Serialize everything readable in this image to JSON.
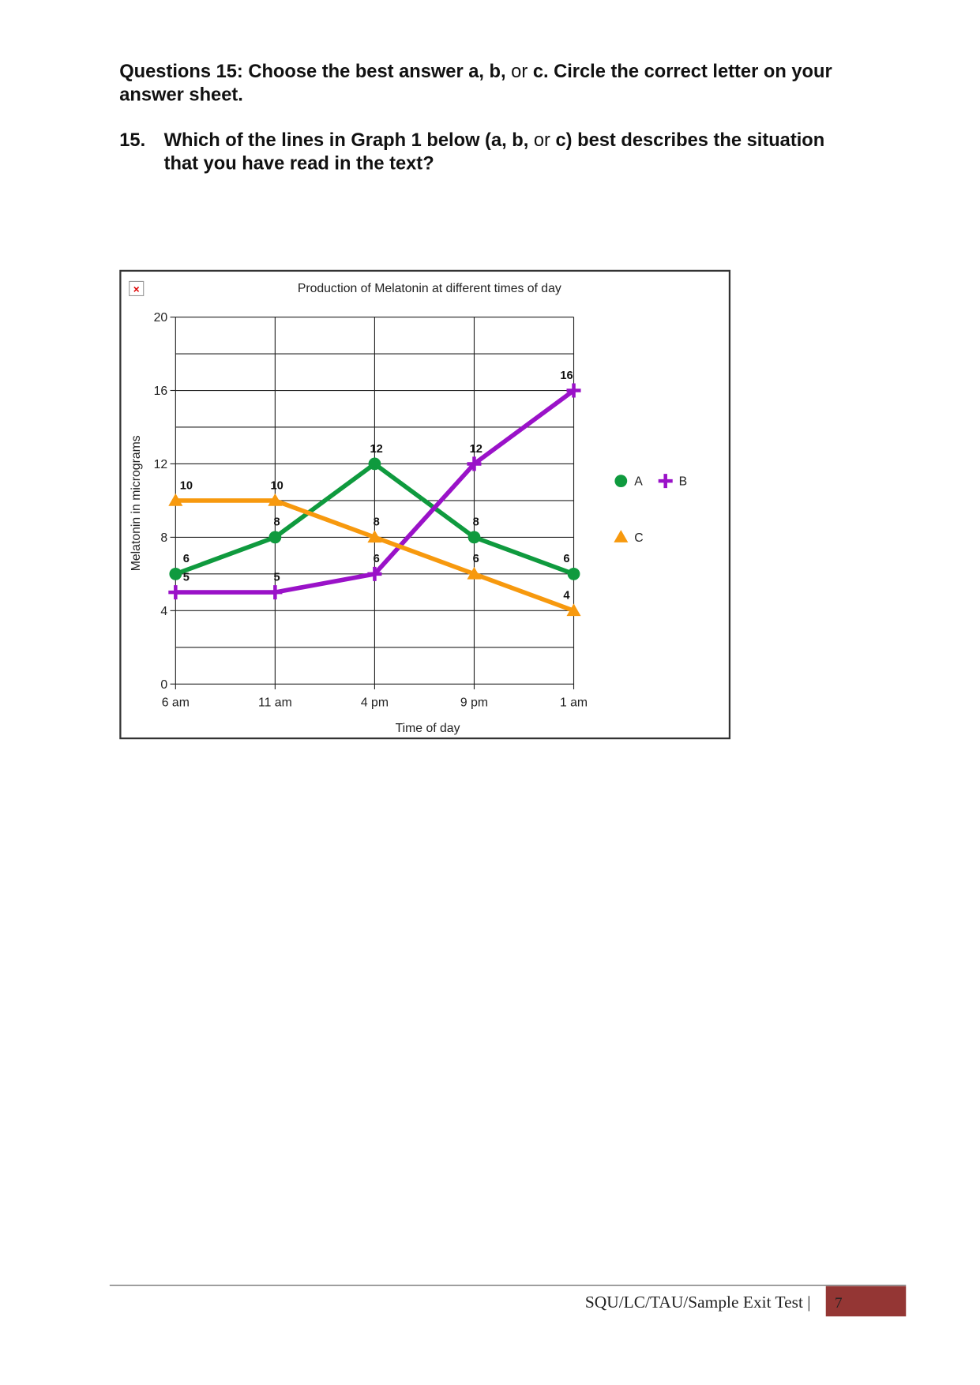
{
  "instructions": {
    "line1": [
      "Questions 15: Choose the best answer a, b, ",
      "or",
      " c. Circle the correct letter on your"
    ],
    "line2": "answer sheet."
  },
  "question": {
    "number": "15.",
    "line1": [
      "Which of the lines in Graph 1 below (a, b, ",
      "or",
      " c) best describes the situation"
    ],
    "line2": "that you have read in the text?"
  },
  "chart_data": {
    "type": "line",
    "title": "Production of Melatonin at different times of day",
    "x_label": "Time of day",
    "y_label": "Melatonin in micrograms",
    "categories": [
      "6 am",
      "11 am",
      "4 pm",
      "9 pm",
      "1 am"
    ],
    "series": [
      {
        "name": "A",
        "color": "#0f9a3e",
        "marker": "circle",
        "values": [
          6,
          8,
          12,
          8,
          6
        ]
      },
      {
        "name": "B",
        "color": "#9a12c8",
        "marker": "plus",
        "values": [
          5,
          5,
          6,
          12,
          16
        ]
      },
      {
        "name": "C",
        "color": "#f7990e",
        "marker": "triangle",
        "values": [
          10,
          10,
          8,
          6,
          4
        ]
      }
    ],
    "ylim": [
      0,
      20
    ],
    "yticks": [
      0,
      4,
      8,
      12,
      16,
      20
    ],
    "minor_yticks": [
      2,
      6,
      10,
      14,
      18
    ],
    "grid": true,
    "data_labels": true
  },
  "footer": {
    "text": "SQU/LC/TAU/Sample Exit Test |",
    "page": "7"
  }
}
